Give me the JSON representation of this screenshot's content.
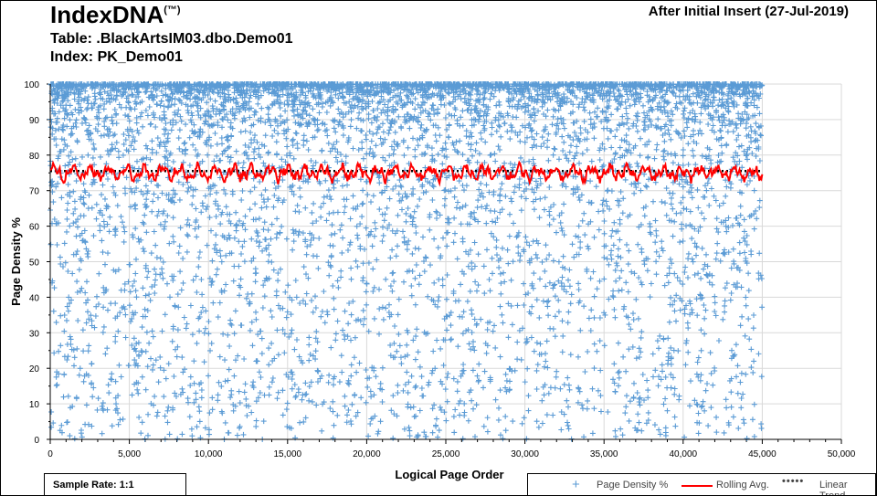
{
  "header": {
    "title": "IndexDNA",
    "tm": "(TM)",
    "snapshot": "After Initial Insert (27-Jul-2019)",
    "table": "Table: .BlackArtsIM03.dbo.Demo01",
    "index": "Index: PK_Demo01"
  },
  "footer": {
    "sample_rate": "Sample Rate: 1:1"
  },
  "colors": {
    "points": "#5b9bd5",
    "rolling": "#ff0000",
    "trend": "#000000",
    "grid": "#d9d9d9"
  },
  "chart_data": {
    "type": "scatter",
    "xlabel": "Logical Page Order",
    "ylabel": "Page Density %",
    "xlim": [
      0,
      50000
    ],
    "ylim": [
      0,
      100
    ],
    "xticks": [
      "0",
      "5,000",
      "10,000",
      "15,000",
      "20,000",
      "25,000",
      "30,000",
      "35,000",
      "40,000",
      "45,000",
      "50,000"
    ],
    "yticks": [
      "0",
      "10",
      "20",
      "30",
      "40",
      "50",
      "60",
      "70",
      "80",
      "90",
      "100"
    ],
    "grid": true,
    "legend_placement": "bottom-right",
    "series": [
      {
        "name": "Page Density %",
        "kind": "scatter",
        "x_range": [
          0,
          45000
        ],
        "approx_mean": 75,
        "min": 0,
        "max": 100
      },
      {
        "name": "Rolling Avg.",
        "kind": "line",
        "approx_value": 75,
        "range": [
          71,
          78
        ]
      },
      {
        "name": "Linear Trend",
        "kind": "dotted-line",
        "x": [
          0,
          45000
        ],
        "y": [
          75.5,
          75.5
        ]
      }
    ]
  }
}
